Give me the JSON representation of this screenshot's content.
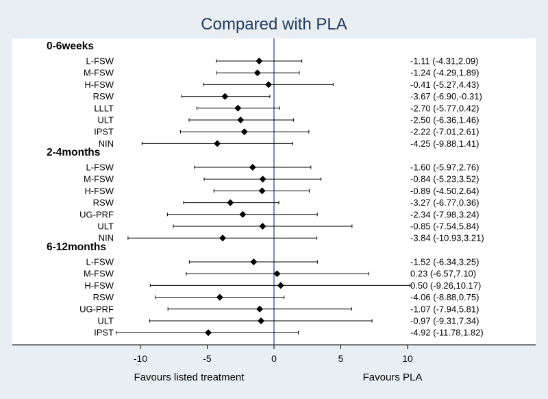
{
  "chart_data": {
    "type": "forest",
    "title": "Compared with PLA",
    "x_ticks": [
      -10,
      -5,
      0,
      5,
      10
    ],
    "xlim": [
      -20,
      20
    ],
    "reference_line": 0,
    "x_axis_captions": {
      "left": "Favours listed treatment",
      "right": "Favours PLA"
    },
    "colors": {
      "reference_line": "#2b4c8c",
      "marker": "#000000",
      "title": "#1f3a5f"
    },
    "groups": [
      {
        "name": "0-6weeks",
        "rows": [
          {
            "label": "L-FSW",
            "est": -1.11,
            "lo": -4.31,
            "hi": 2.09,
            "text": "-1.11 (-4.31,2.09)"
          },
          {
            "label": "M-FSW",
            "est": -1.24,
            "lo": -4.29,
            "hi": 1.89,
            "text": "-1.24 (-4.29,1.89)"
          },
          {
            "label": "H-FSW",
            "est": -0.41,
            "lo": -5.27,
            "hi": 4.43,
            "text": "-0.41 (-5.27,4.43)"
          },
          {
            "label": "RSW",
            "est": -3.67,
            "lo": -6.9,
            "hi": -0.31,
            "text": "-3.67 (-6.90,-0.31)"
          },
          {
            "label": "LLLT",
            "est": -2.7,
            "lo": -5.77,
            "hi": 0.42,
            "text": "-2.70 (-5.77,0.42)"
          },
          {
            "label": "ULT",
            "est": -2.5,
            "lo": -6.36,
            "hi": 1.46,
            "text": "-2.50 (-6.36,1.46)"
          },
          {
            "label": "IPST",
            "est": -2.22,
            "lo": -7.01,
            "hi": 2.61,
            "text": "-2.22 (-7.01,2.61)"
          },
          {
            "label": "NIN",
            "est": -4.25,
            "lo": -9.88,
            "hi": 1.41,
            "text": "-4.25 (-9.88,1.41)"
          }
        ]
      },
      {
        "name": "2-4months",
        "rows": [
          {
            "label": "L-FSW",
            "est": -1.6,
            "lo": -5.97,
            "hi": 2.76,
            "text": "-1.60 (-5.97,2.76)"
          },
          {
            "label": "M-FSW",
            "est": -0.84,
            "lo": -5.23,
            "hi": 3.52,
            "text": "-0.84 (-5.23,3.52)"
          },
          {
            "label": "H-FSW",
            "est": -0.89,
            "lo": -4.5,
            "hi": 2.64,
            "text": "-0.89 (-4.50,2.64)"
          },
          {
            "label": "RSW",
            "est": -3.27,
            "lo": -6.77,
            "hi": 0.36,
            "text": "-3.27 (-6.77,0.36)"
          },
          {
            "label": "UG-PRF",
            "est": -2.34,
            "lo": -7.98,
            "hi": 3.24,
            "text": "-2.34 (-7.98,3.24)"
          },
          {
            "label": "ULT",
            "est": -0.85,
            "lo": -7.54,
            "hi": 5.84,
            "text": "-0.85 (-7.54,5.84)"
          },
          {
            "label": "NIN",
            "est": -3.84,
            "lo": -10.93,
            "hi": 3.21,
            "text": "-3.84 (-10.93,3.21)"
          }
        ]
      },
      {
        "name": "6-12months",
        "rows": [
          {
            "label": "L-FSW",
            "est": -1.52,
            "lo": -6.34,
            "hi": 3.25,
            "text": "-1.52 (-6.34,3.25)"
          },
          {
            "label": "M-FSW",
            "est": 0.23,
            "lo": -6.57,
            "hi": 7.1,
            "text": "0.23 (-6.57,7.10)"
          },
          {
            "label": "H-FSW",
            "est": 0.5,
            "lo": -9.26,
            "hi": 10.17,
            "text": "0.50 (-9.26,10.17)"
          },
          {
            "label": "RSW",
            "est": -4.06,
            "lo": -8.88,
            "hi": 0.75,
            "text": "-4.06 (-8.88,0.75)"
          },
          {
            "label": "UG-PRF",
            "est": -1.07,
            "lo": -7.94,
            "hi": 5.81,
            "text": "-1.07 (-7.94,5.81)"
          },
          {
            "label": "ULT",
            "est": -0.97,
            "lo": -9.31,
            "hi": 7.34,
            "text": "-0.97 (-9.31,7.34)"
          },
          {
            "label": "IPST",
            "est": -4.92,
            "lo": -11.78,
            "hi": 1.82,
            "text": "-4.92 (-11.78,1.82)"
          }
        ]
      }
    ]
  }
}
